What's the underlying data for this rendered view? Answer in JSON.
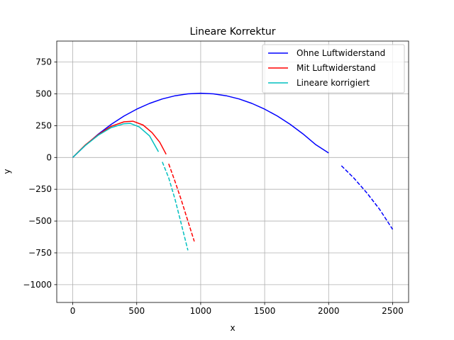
{
  "chart_data": {
    "type": "line",
    "title": "Lineare Korrektur",
    "xlabel": "x",
    "ylabel": "y",
    "xlim": [
      -125,
      2625
    ],
    "ylim": [
      -1140,
      915
    ],
    "xticks": [
      0,
      500,
      1000,
      1500,
      2000,
      2500
    ],
    "yticks": [
      -1000,
      -750,
      -500,
      -250,
      0,
      250,
      500,
      750
    ],
    "xtick_labels": [
      "0",
      "500",
      "1000",
      "1500",
      "2000",
      "2500"
    ],
    "ytick_labels": [
      "−1000",
      "−750",
      "−500",
      "−250",
      "0",
      "250",
      "500",
      "750"
    ],
    "grid": true,
    "legend_position": "upper right",
    "series": [
      {
        "name": "Ohne Luftwiderstand",
        "color": "#0000ff",
        "solid": {
          "x": [
            0,
            100,
            200,
            300,
            400,
            500,
            600,
            700,
            800,
            900,
            1000,
            1100,
            1200,
            1300,
            1400,
            1500,
            1600,
            1700,
            1800,
            1900,
            2000
          ],
          "y": [
            0,
            97,
            184,
            260,
            325,
            380,
            425,
            460,
            485,
            500,
            505,
            500,
            485,
            460,
            425,
            380,
            325,
            260,
            185,
            100,
            35
          ]
        },
        "dashed": {
          "x": [
            2100,
            2200,
            2300,
            2400,
            2500
          ],
          "y": [
            -65,
            -165,
            -280,
            -410,
            -565
          ]
        }
      },
      {
        "name": "Mit Luftwiderstand",
        "color": "#ff0000",
        "solid": {
          "x": [
            0,
            100,
            200,
            300,
            400,
            470,
            550,
            620,
            680,
            730
          ],
          "y": [
            0,
            100,
            180,
            245,
            280,
            285,
            255,
            195,
            120,
            25
          ]
        },
        "dashed": {
          "x": [
            750,
            800,
            850,
            900,
            950
          ],
          "y": [
            -50,
            -190,
            -340,
            -500,
            -660
          ]
        }
      },
      {
        "name": "Lineare korrigiert",
        "color": "#00bfbf",
        "solid": {
          "x": [
            0,
            100,
            200,
            300,
            400,
            450,
            520,
            600,
            670
          ],
          "y": [
            0,
            96,
            175,
            235,
            265,
            268,
            240,
            170,
            45
          ]
        },
        "dashed": {
          "x": [
            700,
            750,
            800,
            850,
            900
          ],
          "y": [
            -35,
            -160,
            -330,
            -530,
            -730
          ]
        }
      }
    ]
  }
}
